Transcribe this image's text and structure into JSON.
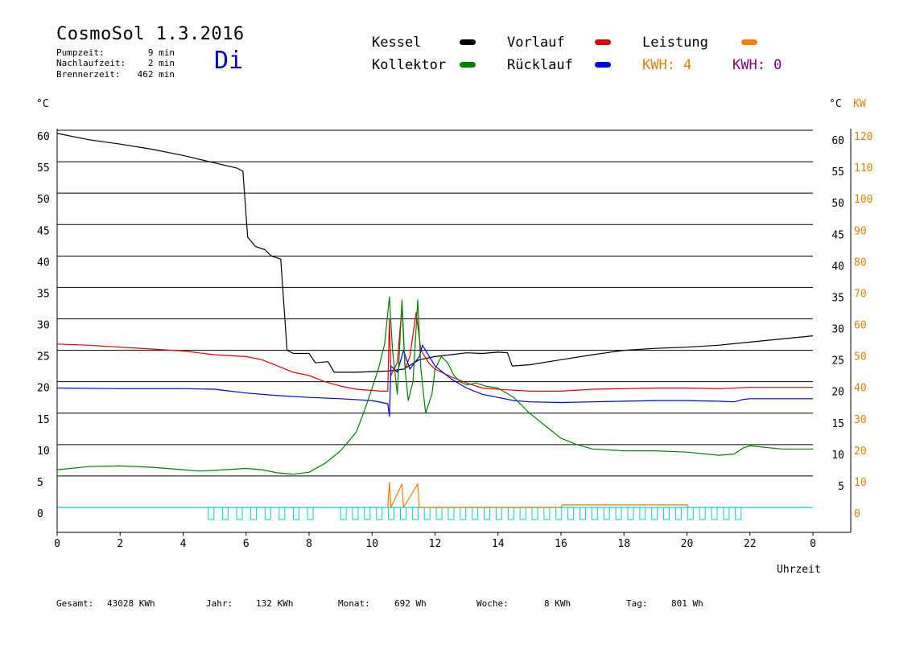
{
  "header": {
    "title": "CosmoSol 1.3.2016",
    "day": "Di",
    "stats": [
      {
        "label": "Pumpzeit:",
        "value": "9 min"
      },
      {
        "label": "Nachlaufzeit:",
        "value": "2 min"
      },
      {
        "label": "Brennerzeit:",
        "value": "462 min"
      }
    ]
  },
  "legend": {
    "items": [
      {
        "label": "Kessel",
        "color": "#000000"
      },
      {
        "label": "Vorlauf",
        "color": "#e00000"
      },
      {
        "label": "Leistung",
        "color": "#ff8000"
      },
      {
        "label": "Kollektor",
        "color": "#008000"
      },
      {
        "label": "Rücklauf",
        "color": "#0000e0"
      }
    ],
    "kwh1": "KWH: 4",
    "kwh1_color": "#e08000",
    "kwh2": "KWH: 0",
    "kwh2_color": "#800080"
  },
  "axes": {
    "left_unit": "°C",
    "right_unit": "°C",
    "right_unit2": "KW",
    "xlabel": "Uhrzeit"
  },
  "footer": {
    "items": [
      {
        "label": "Gesamt:",
        "value": "43028 KWh"
      },
      {
        "label": "Jahr:",
        "value": "132 KWh"
      },
      {
        "label": "Monat:",
        "value": "692 Wh"
      },
      {
        "label": "Woche:",
        "value": "8 KWh"
      },
      {
        "label": "Tag:",
        "value": "801 Wh"
      }
    ]
  },
  "chart_data": {
    "type": "line",
    "x_unit": "hours",
    "xlim": [
      0,
      24
    ],
    "x_ticks": [
      "0",
      "2",
      "4",
      "6",
      "8",
      "10",
      "12",
      "14",
      "16",
      "18",
      "20",
      "22",
      "0"
    ],
    "ylim": [
      0,
      60
    ],
    "y_ticks_left": [
      0,
      5,
      10,
      15,
      20,
      25,
      30,
      35,
      40,
      45,
      50,
      55,
      60
    ],
    "y_ticks_right": [
      5,
      10,
      15,
      20,
      25,
      30,
      35,
      40,
      45,
      50,
      55,
      60
    ],
    "y2_ticks_right": [
      0,
      10,
      20,
      30,
      40,
      50,
      60,
      70,
      80,
      90,
      100,
      110,
      120
    ],
    "y2_color": "#e08000",
    "series": [
      {
        "name": "Kessel",
        "color": "#000000",
        "points": [
          [
            0,
            59.5
          ],
          [
            1,
            58.5
          ],
          [
            2,
            57.8
          ],
          [
            3,
            57
          ],
          [
            4,
            56
          ],
          [
            5,
            54.8
          ],
          [
            5.7,
            54
          ],
          [
            5.9,
            53.5
          ],
          [
            6.05,
            43
          ],
          [
            6.3,
            41.5
          ],
          [
            6.6,
            41
          ],
          [
            6.8,
            40
          ],
          [
            7.1,
            39.5
          ],
          [
            7.3,
            25
          ],
          [
            7.5,
            24.5
          ],
          [
            8,
            24.5
          ],
          [
            8.2,
            23
          ],
          [
            8.6,
            23.2
          ],
          [
            8.8,
            21.5
          ],
          [
            9.5,
            21.5
          ],
          [
            10.5,
            21.7
          ],
          [
            11,
            22
          ],
          [
            11.5,
            23.5
          ],
          [
            12,
            24
          ],
          [
            12.5,
            24.3
          ],
          [
            13,
            24.6
          ],
          [
            13.5,
            24.5
          ],
          [
            14,
            24.7
          ],
          [
            14.3,
            24.6
          ],
          [
            14.45,
            22.5
          ],
          [
            15,
            22.7
          ],
          [
            16,
            23.5
          ],
          [
            17,
            24.3
          ],
          [
            18,
            25
          ],
          [
            19,
            25.3
          ],
          [
            20,
            25.5
          ],
          [
            21,
            25.8
          ],
          [
            22,
            26.3
          ],
          [
            23,
            26.8
          ],
          [
            24,
            27.3
          ]
        ]
      },
      {
        "name": "Vorlauf",
        "color": "#e00000",
        "points": [
          [
            0,
            26
          ],
          [
            1,
            25.8
          ],
          [
            2,
            25.5
          ],
          [
            3,
            25.2
          ],
          [
            4,
            24.9
          ],
          [
            5,
            24.3
          ],
          [
            6,
            24
          ],
          [
            6.5,
            23.5
          ],
          [
            7,
            22.5
          ],
          [
            7.5,
            21.5
          ],
          [
            8,
            21
          ],
          [
            8.5,
            20
          ],
          [
            9,
            19.3
          ],
          [
            9.5,
            18.8
          ],
          [
            10.3,
            18.5
          ],
          [
            10.5,
            18.5
          ],
          [
            10.55,
            30
          ],
          [
            10.6,
            21
          ],
          [
            10.8,
            23
          ],
          [
            10.95,
            32
          ],
          [
            11.05,
            22
          ],
          [
            11.2,
            24
          ],
          [
            11.4,
            31
          ],
          [
            11.55,
            25
          ],
          [
            11.8,
            23
          ],
          [
            12,
            22
          ],
          [
            12.5,
            20.8
          ],
          [
            13,
            19.8
          ],
          [
            13.5,
            19
          ],
          [
            14,
            18.8
          ],
          [
            15,
            18.5
          ],
          [
            16,
            18.5
          ],
          [
            17,
            18.8
          ],
          [
            18,
            18.9
          ],
          [
            19,
            19
          ],
          [
            20,
            19
          ],
          [
            21,
            18.9
          ],
          [
            22,
            19.1
          ],
          [
            23,
            19.1
          ],
          [
            24,
            19.1
          ]
        ]
      },
      {
        "name": "Rücklauf",
        "color": "#0000e0",
        "points": [
          [
            0,
            19
          ],
          [
            2,
            18.9
          ],
          [
            4,
            18.9
          ],
          [
            5,
            18.8
          ],
          [
            5.5,
            18.5
          ],
          [
            6,
            18.2
          ],
          [
            7,
            17.8
          ],
          [
            8,
            17.5
          ],
          [
            9,
            17.3
          ],
          [
            10,
            17
          ],
          [
            10.5,
            16.5
          ],
          [
            10.55,
            14.5
          ],
          [
            10.6,
            22.5
          ],
          [
            10.8,
            21.5
          ],
          [
            11,
            25
          ],
          [
            11.2,
            22
          ],
          [
            11.5,
            24
          ],
          [
            11.6,
            25.8
          ],
          [
            12,
            22.5
          ],
          [
            12.5,
            20.5
          ],
          [
            13,
            19
          ],
          [
            13.5,
            18
          ],
          [
            14,
            17.5
          ],
          [
            14.5,
            17
          ],
          [
            15,
            16.8
          ],
          [
            16,
            16.7
          ],
          [
            17,
            16.8
          ],
          [
            18,
            16.9
          ],
          [
            19,
            17
          ],
          [
            20,
            17
          ],
          [
            21,
            16.9
          ],
          [
            21.5,
            16.8
          ],
          [
            21.8,
            17.2
          ],
          [
            22,
            17.3
          ],
          [
            23,
            17.3
          ],
          [
            24,
            17.3
          ]
        ]
      },
      {
        "name": "Kollektor",
        "color": "#008000",
        "points": [
          [
            0,
            6
          ],
          [
            1,
            6.5
          ],
          [
            2,
            6.6
          ],
          [
            3,
            6.4
          ],
          [
            4,
            6
          ],
          [
            4.5,
            5.8
          ],
          [
            5,
            5.9
          ],
          [
            6,
            6.2
          ],
          [
            6.5,
            6
          ],
          [
            7,
            5.5
          ],
          [
            7.5,
            5.3
          ],
          [
            8,
            5.6
          ],
          [
            8.5,
            7
          ],
          [
            9,
            9
          ],
          [
            9.5,
            12
          ],
          [
            9.8,
            16
          ],
          [
            10,
            19
          ],
          [
            10.2,
            22
          ],
          [
            10.4,
            26
          ],
          [
            10.55,
            33.5
          ],
          [
            10.65,
            25
          ],
          [
            10.8,
            18
          ],
          [
            10.95,
            33
          ],
          [
            11.05,
            22
          ],
          [
            11.15,
            17
          ],
          [
            11.3,
            20
          ],
          [
            11.45,
            33
          ],
          [
            11.55,
            22
          ],
          [
            11.7,
            15
          ],
          [
            11.9,
            18
          ],
          [
            12,
            22
          ],
          [
            12.2,
            24
          ],
          [
            12.4,
            23
          ],
          [
            12.6,
            21
          ],
          [
            12.8,
            20
          ],
          [
            13,
            19.5
          ],
          [
            13.3,
            19.8
          ],
          [
            13.6,
            19.3
          ],
          [
            14,
            19
          ],
          [
            14.5,
            17.5
          ],
          [
            15,
            15
          ],
          [
            15.5,
            13
          ],
          [
            16,
            11
          ],
          [
            16.5,
            10
          ],
          [
            17,
            9.3
          ],
          [
            18,
            9
          ],
          [
            19,
            9
          ],
          [
            20,
            8.8
          ],
          [
            21,
            8.3
          ],
          [
            21.5,
            8.5
          ],
          [
            21.8,
            9.5
          ],
          [
            22,
            9.8
          ],
          [
            23,
            9.3
          ],
          [
            24,
            9.3
          ]
        ]
      },
      {
        "name": "Leistung",
        "color": "#e08000",
        "axis": "right",
        "points": [
          [
            10.5,
            0
          ],
          [
            10.55,
            8
          ],
          [
            10.6,
            0
          ],
          [
            10.95,
            7.5
          ],
          [
            11.0,
            0
          ],
          [
            11.45,
            7.5
          ],
          [
            11.5,
            0
          ],
          [
            16,
            0
          ],
          [
            16.05,
            0.8
          ],
          [
            20,
            0.8
          ],
          [
            20.05,
            0
          ]
        ]
      }
    ]
  }
}
